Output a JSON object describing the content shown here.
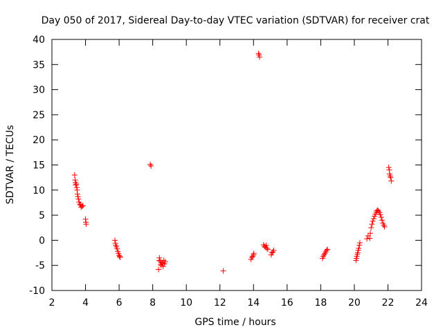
{
  "chart_data": {
    "type": "scatter",
    "title": "Day 050 of 2017, Sidereal Day-to-day VTEC variation (SDTVAR) for receiver crat",
    "xlabel": "GPS time / hours",
    "ylabel": "SDTVAR / TECUs",
    "xlim": [
      2,
      24
    ],
    "ylim": [
      -10,
      40
    ],
    "xticks": [
      2,
      4,
      6,
      8,
      10,
      12,
      14,
      16,
      18,
      20,
      22,
      24
    ],
    "yticks": [
      -10,
      -5,
      0,
      5,
      10,
      15,
      20,
      25,
      30,
      35,
      40
    ],
    "marker": "+",
    "color": "#ff0000",
    "grid": false,
    "series": [
      {
        "name": "SDTVAR",
        "points": [
          [
            3.35,
            13.0
          ],
          [
            3.38,
            12.0
          ],
          [
            3.4,
            11.5
          ],
          [
            3.42,
            11.0
          ],
          [
            3.45,
            11.2
          ],
          [
            3.48,
            10.5
          ],
          [
            3.5,
            10.0
          ],
          [
            3.52,
            9.2
          ],
          [
            3.55,
            8.7
          ],
          [
            3.58,
            8.2
          ],
          [
            3.62,
            7.6
          ],
          [
            3.66,
            7.2
          ],
          [
            3.7,
            7.0
          ],
          [
            3.74,
            6.6
          ],
          [
            3.8,
            6.8
          ],
          [
            3.85,
            6.9
          ],
          [
            4.0,
            4.2
          ],
          [
            4.02,
            3.6
          ],
          [
            4.04,
            3.2
          ],
          [
            5.75,
            0.0
          ],
          [
            5.78,
            -0.6
          ],
          [
            5.8,
            -1.0
          ],
          [
            5.84,
            -1.3
          ],
          [
            5.88,
            -1.7
          ],
          [
            5.92,
            -2.2
          ],
          [
            5.96,
            -2.6
          ],
          [
            6.0,
            -3.0
          ],
          [
            6.03,
            -3.2
          ],
          [
            6.06,
            -3.4
          ],
          [
            7.85,
            15.1
          ],
          [
            7.9,
            14.8
          ],
          [
            8.35,
            -5.8
          ],
          [
            8.38,
            -4.0
          ],
          [
            8.4,
            -3.5
          ],
          [
            8.45,
            -4.2
          ],
          [
            8.48,
            -4.8
          ],
          [
            8.5,
            -5.0
          ],
          [
            8.55,
            -4.4
          ],
          [
            8.58,
            -4.6
          ],
          [
            8.62,
            -5.2
          ],
          [
            8.66,
            -4.0
          ],
          [
            8.7,
            -4.7
          ],
          [
            8.75,
            -4.3
          ],
          [
            12.2,
            -6.1
          ],
          [
            13.85,
            -3.8
          ],
          [
            13.9,
            -3.4
          ],
          [
            13.95,
            -3.2
          ],
          [
            14.0,
            -2.9
          ],
          [
            14.02,
            -2.6
          ],
          [
            14.3,
            37.2
          ],
          [
            14.33,
            36.9
          ],
          [
            14.36,
            36.5
          ],
          [
            14.6,
            -0.9
          ],
          [
            14.65,
            -1.2
          ],
          [
            14.7,
            -1.4
          ],
          [
            14.75,
            -1.0
          ],
          [
            14.8,
            -1.6
          ],
          [
            14.85,
            -1.8
          ],
          [
            15.05,
            -2.9
          ],
          [
            15.1,
            -2.5
          ],
          [
            15.15,
            -2.3
          ],
          [
            15.2,
            -2.0
          ],
          [
            18.1,
            -3.6
          ],
          [
            18.15,
            -3.2
          ],
          [
            18.2,
            -2.9
          ],
          [
            18.25,
            -2.6
          ],
          [
            18.3,
            -2.3
          ],
          [
            18.35,
            -2.0
          ],
          [
            18.4,
            -1.8
          ],
          [
            20.1,
            -4.0
          ],
          [
            20.12,
            -3.6
          ],
          [
            20.15,
            -3.2
          ],
          [
            20.18,
            -2.8
          ],
          [
            20.2,
            -2.5
          ],
          [
            20.23,
            -2.0
          ],
          [
            20.26,
            -1.6
          ],
          [
            20.3,
            -1.0
          ],
          [
            20.33,
            -0.5
          ],
          [
            20.75,
            0.3
          ],
          [
            20.82,
            0.9
          ],
          [
            20.92,
            0.4
          ],
          [
            20.95,
            1.4
          ],
          [
            21.0,
            2.5
          ],
          [
            21.05,
            3.2
          ],
          [
            21.1,
            3.8
          ],
          [
            21.15,
            4.3
          ],
          [
            21.2,
            4.8
          ],
          [
            21.25,
            5.2
          ],
          [
            21.3,
            5.6
          ],
          [
            21.35,
            5.9
          ],
          [
            21.4,
            6.0
          ],
          [
            21.45,
            5.8
          ],
          [
            21.5,
            5.5
          ],
          [
            21.55,
            5.1
          ],
          [
            21.6,
            4.6
          ],
          [
            21.65,
            4.0
          ],
          [
            21.7,
            3.4
          ],
          [
            21.75,
            3.0
          ],
          [
            21.8,
            2.7
          ],
          [
            22.05,
            14.5
          ],
          [
            22.08,
            14.0
          ],
          [
            22.1,
            13.2
          ],
          [
            22.13,
            12.8
          ],
          [
            22.16,
            12.5
          ],
          [
            22.2,
            11.8
          ]
        ]
      }
    ]
  }
}
